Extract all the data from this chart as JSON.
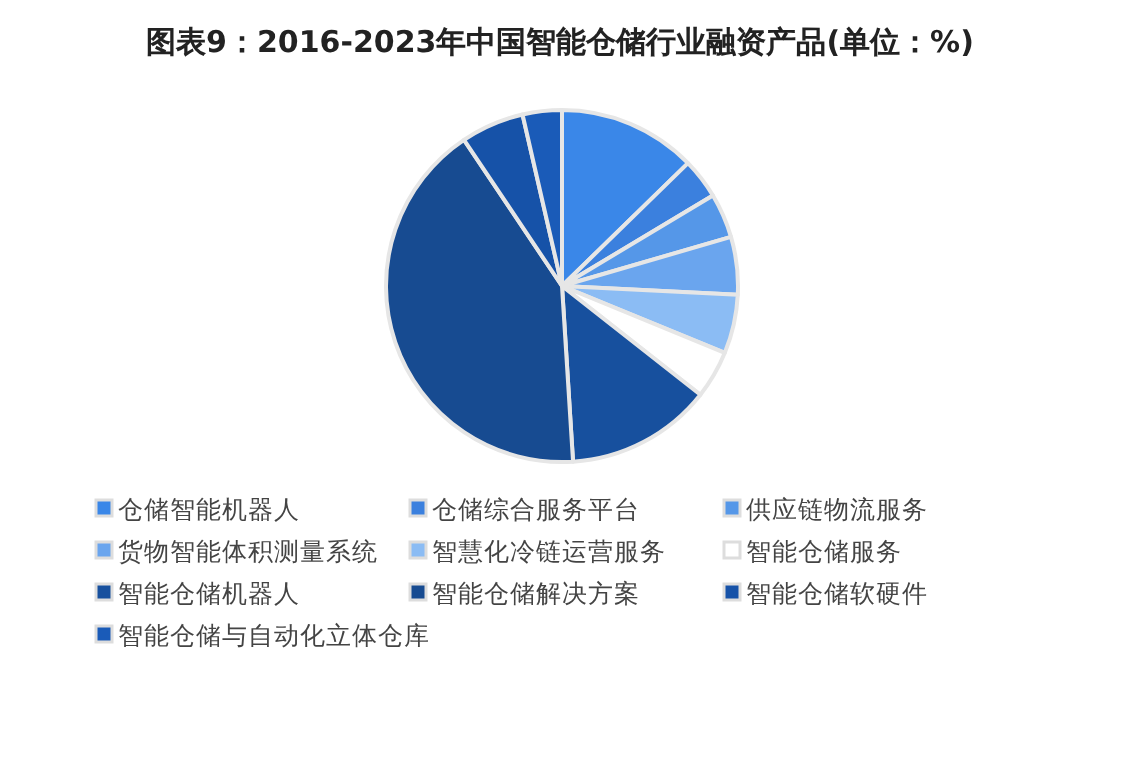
{
  "chart_data": {
    "type": "pie",
    "title": "图表9：2016-2023年中国智能仓储行业融资产品(单位：%)",
    "categories": [
      "仓储智能机器人",
      "仓储综合服务平台",
      "供应链物流服务",
      "货物智能体积测量系统",
      "智慧化冷链运营服务",
      "智能仓储服务",
      "智能仓储机器人",
      "智能仓储解决方案",
      "智能仓储软硬件",
      "智能仓储与自动化立体仓库"
    ],
    "values": [
      12.7,
      3.7,
      4.1,
      5.3,
      5.4,
      4.4,
      13.4,
      41.6,
      5.8,
      3.6
    ],
    "colors": [
      "#3a87e8",
      "#3b80de",
      "#5597e8",
      "#6aa5ee",
      "#8bbcf4",
      "#ffffff",
      "#17509e",
      "#174b91",
      "#1652a8",
      "#1a5bb8"
    ],
    "legend": "bottom"
  }
}
